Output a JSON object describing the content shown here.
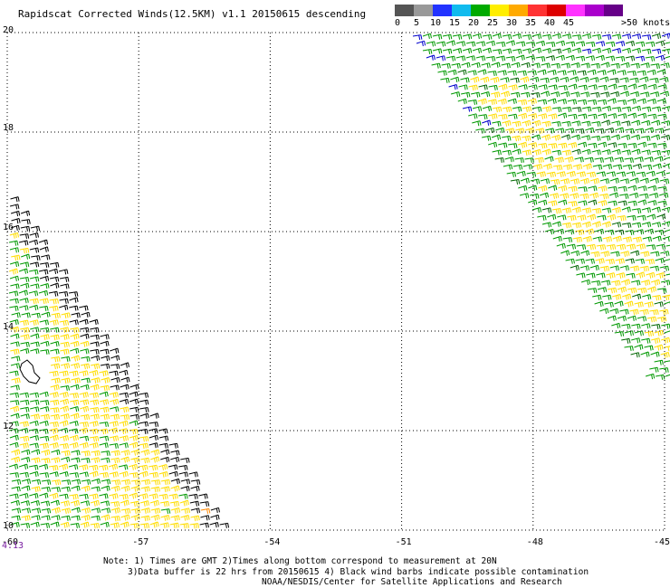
{
  "header": {
    "title": "Rapidscat Corrected Winds(12.5KM) v1.1 20150615 descending"
  },
  "legend": {
    "bins": [
      {
        "label": "0",
        "color": "#555555"
      },
      {
        "label": "5",
        "color": "#999999"
      },
      {
        "label": "10",
        "color": "#2233ff"
      },
      {
        "label": "15",
        "color": "#11bbee"
      },
      {
        "label": "20",
        "color": "#00aa00"
      },
      {
        "label": "25",
        "color": "#ffee00"
      },
      {
        "label": "30",
        "color": "#ffaa00"
      },
      {
        "label": "35",
        "color": "#ff3333"
      },
      {
        "label": "40",
        "color": "#dd0000"
      },
      {
        "label": "45",
        "color": "#ff33ff"
      },
      {
        "label": "",
        "color": "#aa00cc"
      },
      {
        "label": "",
        "color": "#660088"
      }
    ],
    "max_label": ">50 knots"
  },
  "map": {
    "lat_labels": [
      "20",
      "18",
      "16",
      "14",
      "12",
      "10"
    ],
    "lon_labels": [
      "-60",
      "-57",
      "-54",
      "-51",
      "-48",
      "-45"
    ],
    "lat_range": [
      10,
      20
    ],
    "lon_range": [
      -60,
      -45
    ],
    "gridlines": "dotted",
    "time_label": "4:13",
    "swaths": [
      {
        "name": "east-swath",
        "dominant_speed_knots": "15-25"
      },
      {
        "name": "west-swath",
        "dominant_speed_knots": "15-30"
      }
    ]
  },
  "notes": {
    "line1": "Note: 1) Times are GMT 2)Times along bottom correspond to measurement at 20N",
    "line2": "3)Data buffer is 22 hrs from 20150615 4) Black wind barbs indicate possible contamination",
    "line3": "NOAA/NESDIS/Center for Satellite Applications and Research"
  },
  "colors": {
    "barb_green": "#009900",
    "barb_yellow": "#ffdd00",
    "barb_black": "#000000",
    "barb_blue": "#0000cc",
    "barb_orange": "#ff8800",
    "grid": "#000000",
    "time_label": "#7a1fa2"
  }
}
